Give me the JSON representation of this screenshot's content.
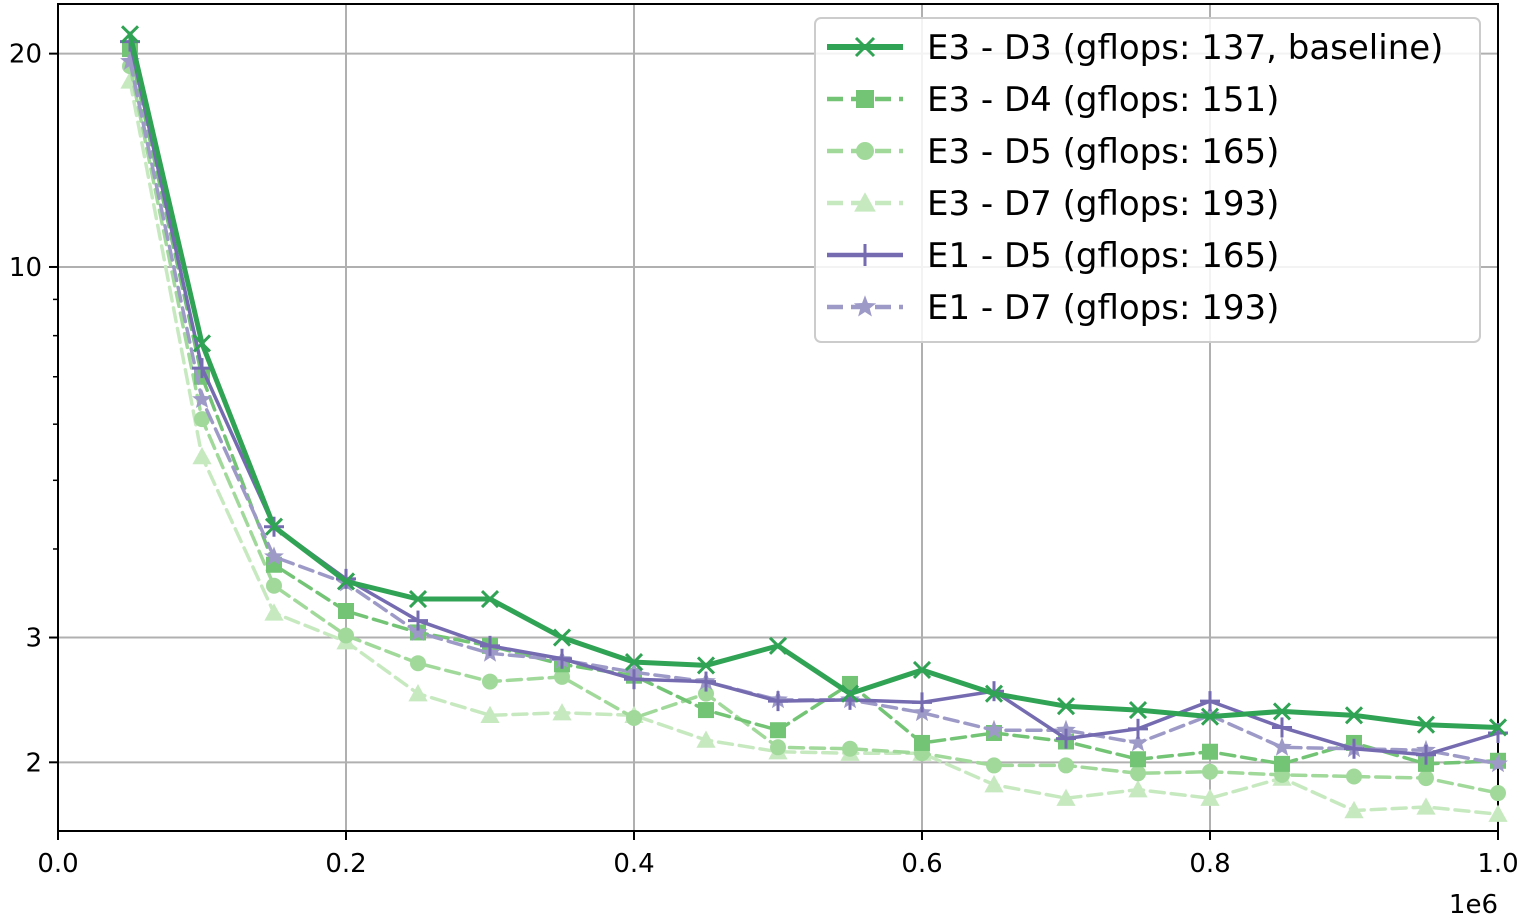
{
  "chart_data": {
    "type": "line",
    "title": "",
    "xlabel": "",
    "ylabel": "",
    "x_offset_label": "1e6",
    "xlim": [
      0.0,
      1.0
    ],
    "ylim": [
      1.6,
      23.5
    ],
    "y_scale": "log",
    "grid": true,
    "legend_position": "upper right",
    "x_ticks": [
      0.0,
      0.2,
      0.4,
      0.6,
      0.8,
      1.0
    ],
    "x_tick_labels": [
      "0.0",
      "0.2",
      "0.4",
      "0.6",
      "0.8",
      "1.0"
    ],
    "y_ticks": [
      2,
      3,
      10,
      20
    ],
    "y_tick_labels": [
      "2",
      "3",
      "10",
      "20"
    ],
    "x": [
      0.05,
      0.1,
      0.15,
      0.2,
      0.25,
      0.3,
      0.35,
      0.4,
      0.45,
      0.5,
      0.55,
      0.6,
      0.65,
      0.7,
      0.75,
      0.8,
      0.85,
      0.9,
      0.95,
      1.0
    ],
    "series": [
      {
        "name": "E3 - D3 (gflops: 137, baseline)",
        "color": "#31a354",
        "marker": "x",
        "dash": "solid",
        "linewidth": 5,
        "values": [
          21.3,
          7.8,
          4.3,
          3.6,
          3.4,
          3.4,
          3.0,
          2.77,
          2.74,
          2.92,
          2.5,
          2.7,
          2.5,
          2.4,
          2.37,
          2.32,
          2.36,
          2.33,
          2.26,
          2.24
        ]
      },
      {
        "name": "E3 - D4 (gflops: 151)",
        "color": "#74c476",
        "marker": "square",
        "dash": "dashed",
        "linewidth": 3.5,
        "values": [
          20.3,
          7.0,
          3.8,
          3.27,
          3.05,
          2.92,
          2.75,
          2.65,
          2.37,
          2.22,
          2.58,
          2.13,
          2.2,
          2.14,
          2.02,
          2.07,
          1.99,
          2.13,
          1.99,
          2.01
        ]
      },
      {
        "name": "E3 - D5 (gflops: 165)",
        "color": "#a1d99b",
        "marker": "circle",
        "dash": "dashed",
        "linewidth": 3.5,
        "values": [
          19.2,
          6.1,
          3.55,
          3.02,
          2.76,
          2.6,
          2.64,
          2.31,
          2.5,
          2.1,
          2.09,
          2.06,
          1.98,
          1.98,
          1.93,
          1.94,
          1.92,
          1.91,
          1.9,
          1.81
        ]
      },
      {
        "name": "E3 - D7 (gflops: 193)",
        "color": "#c7e9c0",
        "marker": "triangle",
        "dash": "dashed",
        "linewidth": 3.5,
        "values": [
          18.3,
          5.4,
          3.25,
          2.96,
          2.5,
          2.33,
          2.35,
          2.33,
          2.15,
          2.07,
          2.06,
          2.06,
          1.86,
          1.78,
          1.83,
          1.78,
          1.9,
          1.71,
          1.73,
          1.69
        ]
      },
      {
        "name": "E1 - D5 (gflops: 165)",
        "color": "#756bb1",
        "marker": "plus",
        "dash": "solid",
        "linewidth": 3.5,
        "values": [
          20.8,
          7.2,
          4.3,
          3.63,
          3.17,
          2.92,
          2.8,
          2.62,
          2.6,
          2.44,
          2.45,
          2.43,
          2.52,
          2.16,
          2.23,
          2.44,
          2.24,
          2.09,
          2.05,
          2.2
        ]
      },
      {
        "name": "E1 - D7 (gflops: 193)",
        "color": "#9e9ac8",
        "marker": "star",
        "dash": "dashed",
        "linewidth": 3.5,
        "values": [
          19.5,
          6.5,
          3.9,
          3.58,
          3.05,
          2.85,
          2.79,
          2.68,
          2.6,
          2.45,
          2.45,
          2.35,
          2.22,
          2.22,
          2.13,
          2.33,
          2.1,
          2.09,
          2.08,
          1.99
        ]
      }
    ]
  }
}
